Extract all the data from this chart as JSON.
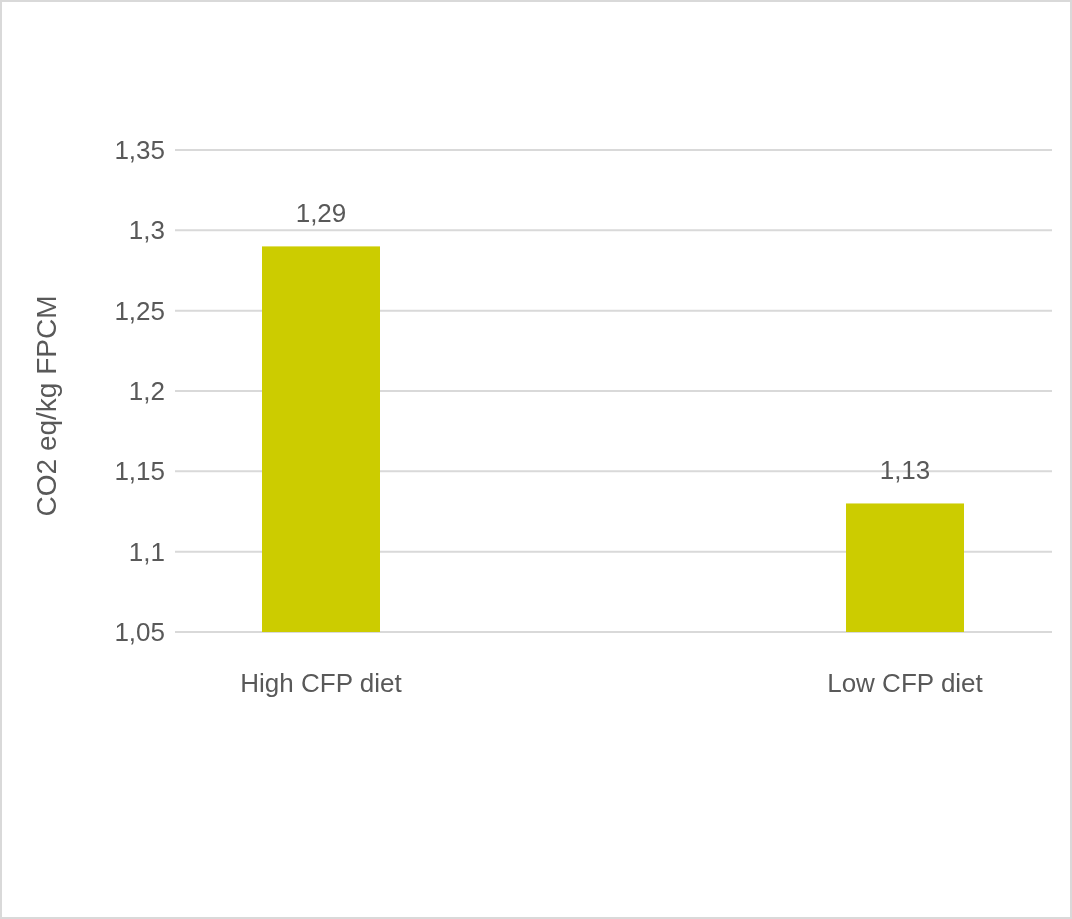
{
  "chart_data": {
    "type": "bar",
    "ylabel": "CO2 eq/kg FPCM",
    "categories": [
      "High CFP diet",
      "Low CFP diet"
    ],
    "values": [
      1.29,
      1.13
    ],
    "color": "#cccc00",
    "value_labels": [
      "1,29",
      "1,13"
    ],
    "ylim": [
      1.05,
      1.35
    ],
    "yticks": [
      {
        "value": 1.05,
        "label": "1,05"
      },
      {
        "value": 1.1,
        "label": "1,1"
      },
      {
        "value": 1.15,
        "label": "1,15"
      },
      {
        "value": 1.2,
        "label": "1,2"
      },
      {
        "value": 1.25,
        "label": "1,25"
      },
      {
        "value": 1.3,
        "label": "1,3"
      },
      {
        "value": 1.35,
        "label": "1,35"
      }
    ],
    "grid": "y"
  }
}
